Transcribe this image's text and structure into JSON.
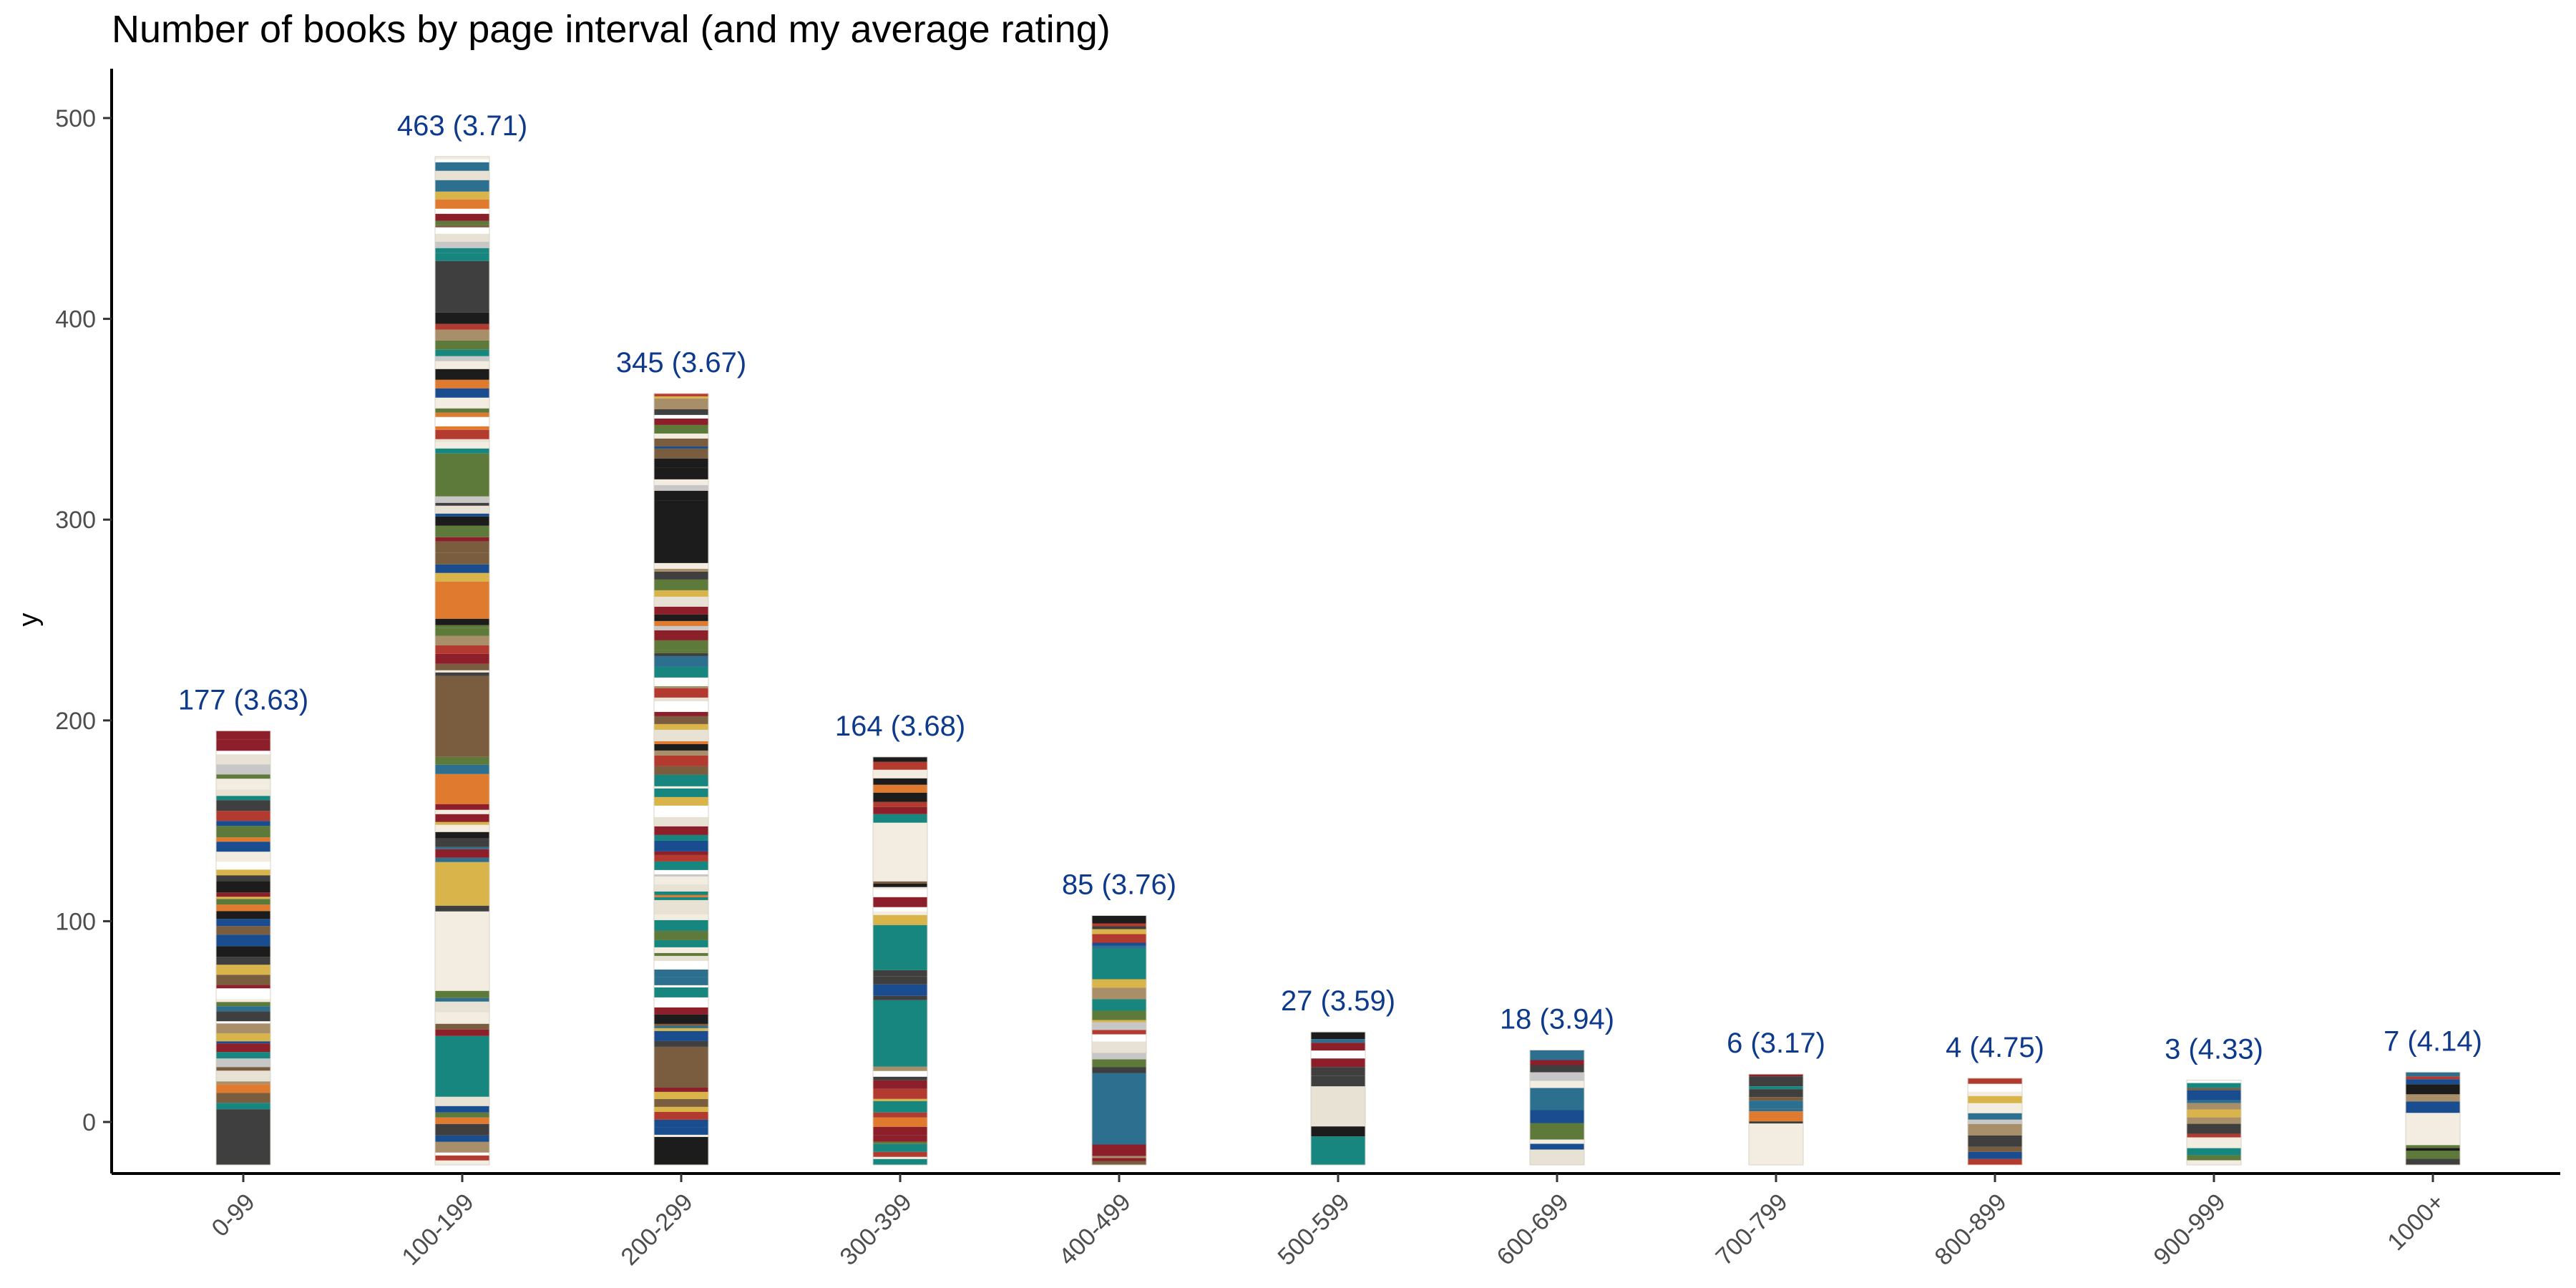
{
  "chart_data": {
    "type": "bar",
    "title": "Number of books by page interval (and my average rating)",
    "xlabel": "",
    "ylabel": "y",
    "ylim": [
      -25,
      525
    ],
    "yticks": [
      0,
      100,
      200,
      300,
      400,
      500
    ],
    "grid": false,
    "legend": "none",
    "categories": [
      "0-99",
      "100-199",
      "200-299",
      "300-399",
      "400-499",
      "500-599",
      "600-699",
      "700-799",
      "800-899",
      "900-999",
      "1000+"
    ],
    "values": [
      177,
      463,
      345,
      164,
      85,
      27,
      18,
      6,
      4,
      3,
      7
    ],
    "avg_ratings": [
      3.63,
      3.71,
      3.67,
      3.68,
      3.76,
      3.59,
      3.94,
      3.17,
      4.75,
      4.33,
      4.14
    ],
    "data_labels": [
      "177 (3.63)",
      "463 (3.71)",
      "345 (3.67)",
      "164 (3.68)",
      "85 (3.76)",
      "27 (3.59)",
      "18 (3.94)",
      "6 (3.17)",
      "4 (4.75)",
      "3 (4.33)",
      "7 (4.14)"
    ],
    "colors": {
      "label": "#0d3a8c",
      "axis": "#000000",
      "tick_text": "#4d4d4d",
      "cover_palette": [
        "#1c1c1c",
        "#f2ede0",
        "#b33a2e",
        "#2d6f8f",
        "#d9b44a",
        "#e8e2d4",
        "#3f3f3f",
        "#7a5c3e",
        "#1a4d8f",
        "#c7c7c7",
        "#8c1f2a",
        "#ffffff",
        "#5e7a3a",
        "#e07a2f",
        "#17867e",
        "#a88f6a"
      ]
    }
  }
}
